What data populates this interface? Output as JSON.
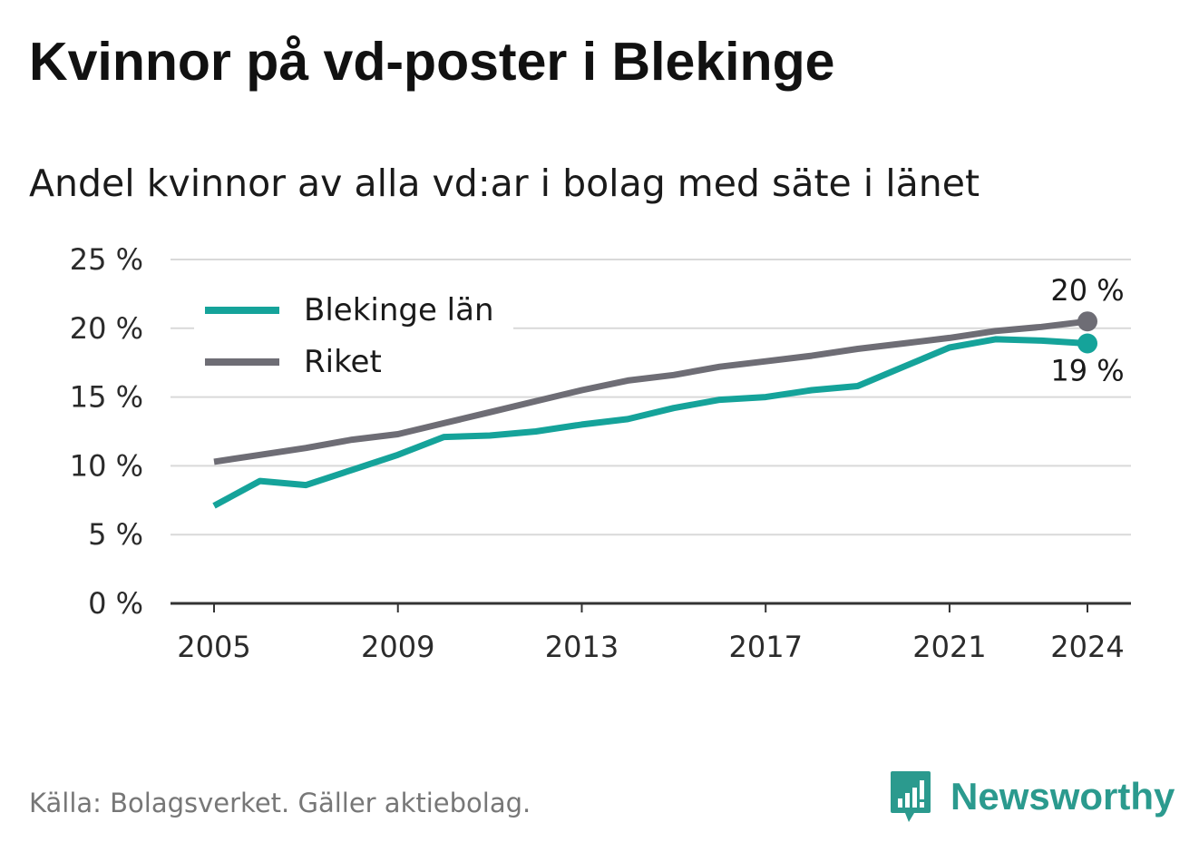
{
  "title": "Kvinnor på vd-poster i Blekinge",
  "subtitle": "Andel kvinnor av alla vd:ar i bolag med säte i länet",
  "source": "Källa: Bolagsverket. Gäller aktiebolag.",
  "brand": {
    "name": "Newsworthy",
    "icon": "newsworthy-logo-icon",
    "color": "#2b9a8e"
  },
  "chart_data": {
    "type": "line",
    "title": "",
    "xlabel": "",
    "ylabel": "",
    "x": [
      2005,
      2006,
      2007,
      2008,
      2009,
      2010,
      2011,
      2012,
      2013,
      2014,
      2015,
      2016,
      2017,
      2018,
      2019,
      2020,
      2021,
      2022,
      2023,
      2024
    ],
    "x_ticks": [
      2005,
      2009,
      2013,
      2017,
      2021,
      2024
    ],
    "x_tick_labels": [
      "2005",
      "2009",
      "2013",
      "2017",
      "2021",
      "2024"
    ],
    "ylim": [
      0,
      25
    ],
    "y_ticks": [
      0,
      5,
      10,
      15,
      20,
      25
    ],
    "y_tick_labels": [
      "0 %",
      "5 %",
      "10 %",
      "15 %",
      "20 %",
      "25 %"
    ],
    "grid": true,
    "legend_position": "top-left",
    "series": [
      {
        "name": "Blekinge län",
        "color": "#15a39a",
        "values": [
          7.1,
          8.9,
          8.6,
          9.7,
          10.8,
          12.1,
          12.2,
          12.5,
          13.0,
          13.4,
          14.2,
          14.8,
          15.0,
          15.5,
          15.8,
          17.2,
          18.6,
          19.2,
          19.1,
          18.9
        ],
        "end_label": "19 %"
      },
      {
        "name": "Riket",
        "color": "#6e6d75",
        "values": [
          10.3,
          10.8,
          11.3,
          11.9,
          12.3,
          13.1,
          13.9,
          14.7,
          15.5,
          16.2,
          16.6,
          17.2,
          17.6,
          18.0,
          18.5,
          18.9,
          19.3,
          19.8,
          20.1,
          20.5
        ],
        "end_label": "20 %"
      }
    ]
  }
}
